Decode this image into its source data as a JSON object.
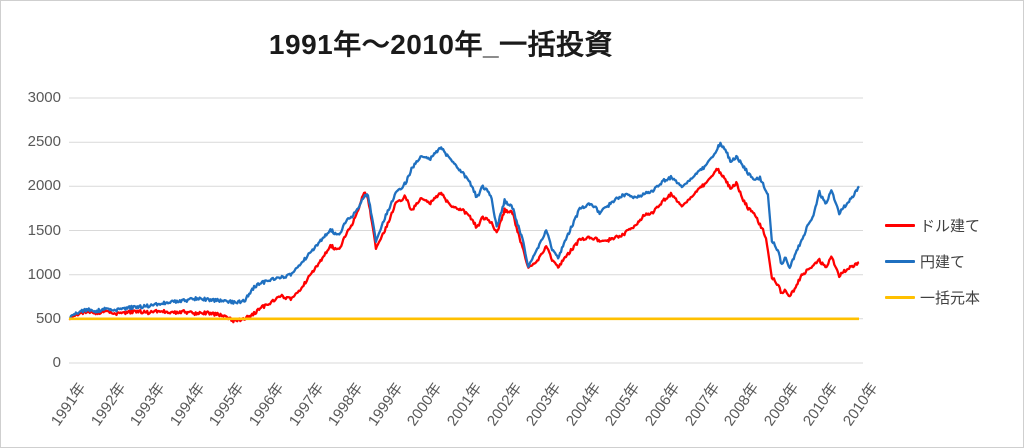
{
  "colors": {
    "title_text": "#1A1A1A",
    "axis_text": "#595959",
    "legend_text": "#404040",
    "gridline": "#D9D9D9",
    "frame_border": "#CFCFCF",
    "background": "#FFFFFF",
    "series_dollar": "#FF0000",
    "series_yen": "#1F70C0",
    "series_principal": "#FFC000"
  },
  "chart_data": {
    "type": "line",
    "title": "1991年～2010年_一括投資",
    "xlabel": "",
    "ylabel": "",
    "ylim": [
      0,
      3000
    ],
    "y_ticks": [
      0,
      500,
      1000,
      1500,
      2000,
      2500,
      3000
    ],
    "x_tick_labels": [
      "1991年",
      "1992年",
      "1993年",
      "1994年",
      "1995年",
      "1996年",
      "1997年",
      "1998年",
      "1999年",
      "2000年",
      "2001年",
      "2002年",
      "2003年",
      "2004年",
      "2005年",
      "2006年",
      "2007年",
      "2008年",
      "2009年",
      "2010年",
      "2010年"
    ],
    "grid": "horizontal",
    "legend_position": "right",
    "x_start_year": 1991,
    "x_end_year": 2011,
    "series": [
      {
        "name": "ドル建て",
        "color": "#FF0000",
        "points": [
          [
            1991.0,
            500
          ],
          [
            1991.1,
            545
          ],
          [
            1991.3,
            565
          ],
          [
            1991.5,
            580
          ],
          [
            1991.7,
            570
          ],
          [
            1992.0,
            590
          ],
          [
            1992.25,
            555
          ],
          [
            1992.5,
            575
          ],
          [
            1992.75,
            585
          ],
          [
            1993.0,
            570
          ],
          [
            1993.3,
            590
          ],
          [
            1993.6,
            565
          ],
          [
            1993.9,
            580
          ],
          [
            1994.2,
            560
          ],
          [
            1994.5,
            570
          ],
          [
            1994.8,
            545
          ],
          [
            1995.0,
            520
          ],
          [
            1995.15,
            475
          ],
          [
            1995.35,
            495
          ],
          [
            1995.6,
            530
          ],
          [
            1995.85,
            625
          ],
          [
            1996.1,
            680
          ],
          [
            1996.35,
            760
          ],
          [
            1996.6,
            725
          ],
          [
            1996.85,
            835
          ],
          [
            1997.1,
            1000
          ],
          [
            1997.35,
            1150
          ],
          [
            1997.6,
            1330
          ],
          [
            1997.8,
            1280
          ],
          [
            1998.0,
            1450
          ],
          [
            1998.2,
            1620
          ],
          [
            1998.45,
            1930
          ],
          [
            1998.55,
            1860
          ],
          [
            1998.75,
            1310
          ],
          [
            1999.0,
            1520
          ],
          [
            1999.25,
            1800
          ],
          [
            1999.5,
            1890
          ],
          [
            1999.65,
            1720
          ],
          [
            1999.9,
            1870
          ],
          [
            2000.1,
            1800
          ],
          [
            2000.4,
            1930
          ],
          [
            2000.65,
            1760
          ],
          [
            2000.9,
            1745
          ],
          [
            2001.15,
            1645
          ],
          [
            2001.3,
            1530
          ],
          [
            2001.45,
            1650
          ],
          [
            2001.65,
            1600
          ],
          [
            2001.8,
            1475
          ],
          [
            2002.0,
            1730
          ],
          [
            2002.2,
            1700
          ],
          [
            2002.45,
            1300
          ],
          [
            2002.6,
            1090
          ],
          [
            2002.8,
            1130
          ],
          [
            2003.05,
            1325
          ],
          [
            2003.2,
            1160
          ],
          [
            2003.35,
            1080
          ],
          [
            2003.6,
            1230
          ],
          [
            2003.9,
            1400
          ],
          [
            2004.2,
            1420
          ],
          [
            2004.5,
            1370
          ],
          [
            2004.8,
            1425
          ],
          [
            2005.0,
            1460
          ],
          [
            2005.25,
            1530
          ],
          [
            2005.5,
            1665
          ],
          [
            2005.75,
            1705
          ],
          [
            2006.0,
            1835
          ],
          [
            2006.2,
            1910
          ],
          [
            2006.45,
            1780
          ],
          [
            2006.7,
            1870
          ],
          [
            2007.0,
            2005
          ],
          [
            2007.2,
            2085
          ],
          [
            2007.35,
            2210
          ],
          [
            2007.55,
            2100
          ],
          [
            2007.7,
            1980
          ],
          [
            2007.85,
            2035
          ],
          [
            2008.0,
            1870
          ],
          [
            2008.15,
            1755
          ],
          [
            2008.3,
            1680
          ],
          [
            2008.5,
            1530
          ],
          [
            2008.6,
            1415
          ],
          [
            2008.75,
            965
          ],
          [
            2008.9,
            890
          ],
          [
            2009.0,
            780
          ],
          [
            2009.1,
            825
          ],
          [
            2009.2,
            755
          ],
          [
            2009.35,
            860
          ],
          [
            2009.5,
            1000
          ],
          [
            2009.65,
            1050
          ],
          [
            2009.8,
            1105
          ],
          [
            2009.95,
            1160
          ],
          [
            2010.1,
            1080
          ],
          [
            2010.25,
            1200
          ],
          [
            2010.45,
            990
          ],
          [
            2010.6,
            1045
          ],
          [
            2010.75,
            1085
          ],
          [
            2010.95,
            1140
          ]
        ]
      },
      {
        "name": "円建て",
        "color": "#1F70C0",
        "points": [
          [
            1991.0,
            500
          ],
          [
            1991.1,
            560
          ],
          [
            1991.3,
            585
          ],
          [
            1991.5,
            600
          ],
          [
            1991.7,
            590
          ],
          [
            1992.0,
            620
          ],
          [
            1992.25,
            600
          ],
          [
            1992.5,
            625
          ],
          [
            1992.75,
            635
          ],
          [
            1993.0,
            645
          ],
          [
            1993.3,
            670
          ],
          [
            1993.6,
            690
          ],
          [
            1993.9,
            705
          ],
          [
            1994.2,
            730
          ],
          [
            1994.5,
            720
          ],
          [
            1994.8,
            705
          ],
          [
            1995.0,
            700
          ],
          [
            1995.2,
            680
          ],
          [
            1995.45,
            715
          ],
          [
            1995.7,
            870
          ],
          [
            1996.0,
            930
          ],
          [
            1996.3,
            960
          ],
          [
            1996.6,
            1000
          ],
          [
            1996.9,
            1150
          ],
          [
            1997.1,
            1250
          ],
          [
            1997.35,
            1380
          ],
          [
            1997.6,
            1510
          ],
          [
            1997.8,
            1445
          ],
          [
            1998.0,
            1600
          ],
          [
            1998.2,
            1690
          ],
          [
            1998.45,
            1880
          ],
          [
            1998.55,
            1900
          ],
          [
            1998.75,
            1390
          ],
          [
            1999.0,
            1665
          ],
          [
            1999.25,
            1915
          ],
          [
            1999.5,
            2040
          ],
          [
            1999.65,
            2195
          ],
          [
            1999.9,
            2345
          ],
          [
            2000.1,
            2300
          ],
          [
            2000.4,
            2445
          ],
          [
            2000.65,
            2285
          ],
          [
            2000.9,
            2175
          ],
          [
            2001.15,
            2025
          ],
          [
            2001.3,
            1870
          ],
          [
            2001.45,
            2000
          ],
          [
            2001.65,
            1905
          ],
          [
            2001.8,
            1540
          ],
          [
            2002.0,
            1835
          ],
          [
            2002.2,
            1760
          ],
          [
            2002.45,
            1400
          ],
          [
            2002.6,
            1100
          ],
          [
            2002.8,
            1260
          ],
          [
            2003.05,
            1505
          ],
          [
            2003.2,
            1280
          ],
          [
            2003.35,
            1185
          ],
          [
            2003.6,
            1450
          ],
          [
            2003.9,
            1750
          ],
          [
            2004.2,
            1805
          ],
          [
            2004.4,
            1700
          ],
          [
            2004.8,
            1855
          ],
          [
            2005.0,
            1910
          ],
          [
            2005.25,
            1870
          ],
          [
            2005.5,
            1910
          ],
          [
            2005.75,
            1950
          ],
          [
            2006.0,
            2060
          ],
          [
            2006.2,
            2100
          ],
          [
            2006.45,
            2000
          ],
          [
            2006.7,
            2080
          ],
          [
            2007.0,
            2200
          ],
          [
            2007.2,
            2300
          ],
          [
            2007.45,
            2490
          ],
          [
            2007.6,
            2400
          ],
          [
            2007.7,
            2285
          ],
          [
            2007.85,
            2330
          ],
          [
            2008.0,
            2250
          ],
          [
            2008.15,
            2150
          ],
          [
            2008.3,
            2060
          ],
          [
            2008.45,
            2100
          ],
          [
            2008.55,
            2000
          ],
          [
            2008.65,
            1900
          ],
          [
            2008.75,
            1380
          ],
          [
            2008.9,
            1280
          ],
          [
            2009.0,
            1105
          ],
          [
            2009.1,
            1200
          ],
          [
            2009.2,
            1075
          ],
          [
            2009.35,
            1250
          ],
          [
            2009.5,
            1390
          ],
          [
            2009.65,
            1550
          ],
          [
            2009.8,
            1670
          ],
          [
            2009.95,
            1930
          ],
          [
            2010.1,
            1800
          ],
          [
            2010.25,
            1950
          ],
          [
            2010.45,
            1700
          ],
          [
            2010.6,
            1780
          ],
          [
            2010.75,
            1855
          ],
          [
            2010.95,
            2000
          ]
        ]
      },
      {
        "name": "一括元本",
        "color": "#FFC000",
        "points": [
          [
            1991.0,
            500
          ],
          [
            2010.95,
            500
          ]
        ]
      }
    ]
  },
  "legend": {
    "items": [
      {
        "label": "ドル建て",
        "color": "#FF0000"
      },
      {
        "label": "円建て",
        "color": "#1F70C0"
      },
      {
        "label": "一括元本",
        "color": "#FFC000"
      }
    ]
  }
}
